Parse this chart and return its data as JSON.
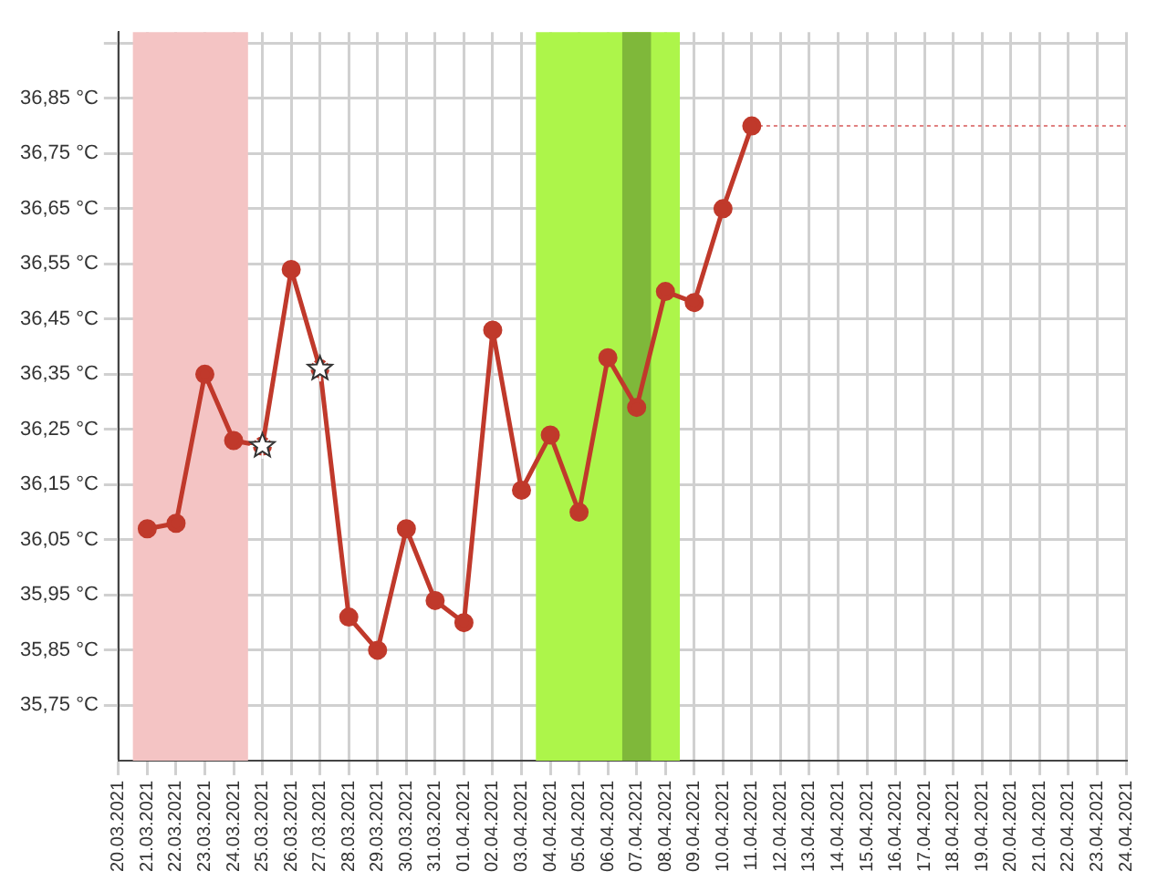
{
  "chart_data": {
    "type": "line",
    "categories": [
      "20.03.2021",
      "21.03.2021",
      "22.03.2021",
      "23.03.2021",
      "24.03.2021",
      "25.03.2021",
      "26.03.2021",
      "27.03.2021",
      "28.03.2021",
      "29.03.2021",
      "30.03.2021",
      "31.03.2021",
      "01.04.2021",
      "02.04.2021",
      "03.04.2021",
      "04.04.2021",
      "05.04.2021",
      "06.04.2021",
      "07.04.2021",
      "08.04.2021",
      "09.04.2021",
      "10.04.2021",
      "11.04.2021",
      "12.04.2021",
      "13.04.2021",
      "14.04.2021",
      "15.04.2021",
      "16.04.2021",
      "17.04.2021",
      "18.04.2021",
      "19.04.2021",
      "20.04.2021",
      "21.04.2021",
      "22.04.2021",
      "23.04.2021",
      "24.04.2021"
    ],
    "series": [
      {
        "color": "#c0392b",
        "marker": "circle",
        "line_style": "solid",
        "values": [
          null,
          36.07,
          36.08,
          36.35,
          36.23,
          36.22,
          36.54,
          36.36,
          35.91,
          35.85,
          36.07,
          35.94,
          35.9,
          36.43,
          36.14,
          36.24,
          36.1,
          36.38,
          36.29,
          36.5,
          36.48,
          36.65,
          36.8,
          null,
          null,
          null,
          null,
          null,
          null,
          null,
          null,
          null,
          null,
          null,
          null,
          null
        ]
      },
      {
        "color": "#e08080",
        "marker": "none",
        "line_style": "dotted",
        "values": [
          null,
          null,
          null,
          null,
          null,
          null,
          null,
          null,
          null,
          null,
          null,
          null,
          null,
          null,
          null,
          null,
          null,
          null,
          null,
          null,
          null,
          null,
          36.8,
          36.8,
          36.8,
          36.8,
          36.8,
          36.8,
          36.8,
          36.8,
          36.8,
          36.8,
          36.8,
          36.8,
          36.8,
          36.8
        ]
      },
      {
        "type": "scatter",
        "color": "#ffffff",
        "marker": "star",
        "x": [
          "25.03.2021",
          "27.03.2021"
        ],
        "values": [
          36.22,
          36.36
        ]
      }
    ],
    "ylim": [
      35.65,
      36.97
    ],
    "yticks": [
      {
        "value": 35.75,
        "label": "35,75 °C"
      },
      {
        "value": 35.85,
        "label": "35,85 °C"
      },
      {
        "value": 35.95,
        "label": "35,95 °C"
      },
      {
        "value": 36.05,
        "label": "36,05 °C"
      },
      {
        "value": 36.15,
        "label": "36,15 °C"
      },
      {
        "value": 36.25,
        "label": "36,25 °C"
      },
      {
        "value": 36.35,
        "label": "36,35 °C"
      },
      {
        "value": 36.45,
        "label": "36,45 °C"
      },
      {
        "value": 36.55,
        "label": "36,55 °C"
      },
      {
        "value": 36.65,
        "label": "36,65 °C"
      },
      {
        "value": 36.75,
        "label": "36,75 °C"
      },
      {
        "value": 36.85,
        "label": "36,85 °C"
      },
      {
        "value": 36.95,
        "label": null
      }
    ],
    "bands": [
      {
        "axis": "x",
        "from": "21.03.2021",
        "to": "24.03.2021",
        "color": "#f4c4c4"
      },
      {
        "axis": "x",
        "from": "04.04.2021",
        "to": "08.04.2021",
        "color": "#adf54a"
      },
      {
        "axis": "x",
        "from": "07.04.2021",
        "to": "07.04.2021",
        "color": "#7fb83a"
      }
    ],
    "grid": true,
    "legend": false
  }
}
